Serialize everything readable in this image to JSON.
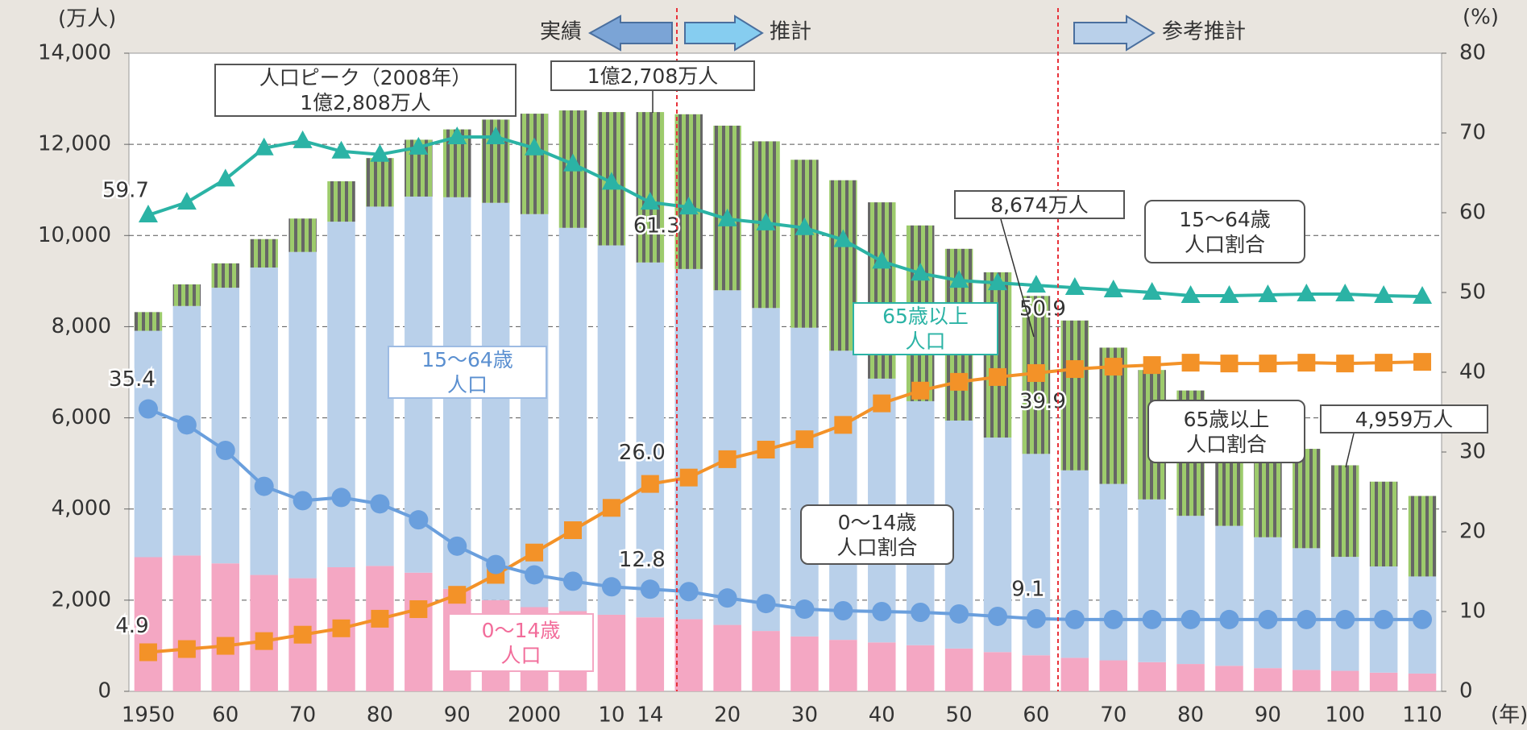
{
  "chart_data": {
    "type": "bar",
    "y_unit": "(万人)",
    "y2_unit": "(%)",
    "x_unit": "(年)",
    "phases": [
      "実績",
      "推計",
      "参考推計"
    ],
    "annotations": [
      "人口ピーク（2008年）\n1億2,808万人",
      "1億2,708万人",
      "8,674万人",
      "4,959万人"
    ],
    "categories": [
      "1950",
      null,
      "60",
      null,
      "70",
      null,
      "80",
      null,
      "90",
      null,
      "2000",
      null,
      "10",
      "14",
      null,
      "20",
      null,
      "30",
      null,
      "40",
      null,
      "50",
      null,
      "60",
      null,
      "70",
      null,
      "80",
      null,
      "90",
      null,
      "100",
      null,
      "110"
    ],
    "ylim": [
      0,
      14000
    ],
    "yticks": [
      0,
      {
        "value": 2000,
        "label": "2,000"
      },
      {
        "value": 4000,
        "label": "4,000"
      },
      {
        "value": 6000,
        "label": "6,000"
      },
      {
        "value": 8000,
        "label": "8,000"
      },
      {
        "value": 10000,
        "label": "10,000"
      },
      {
        "value": 12000,
        "label": "12,000"
      },
      {
        "value": 14000,
        "label": "14,000"
      }
    ],
    "y2lim": [
      0,
      80
    ],
    "y2ticks": [
      0,
      10,
      20,
      30,
      40,
      50,
      60,
      70,
      80
    ],
    "grid": true,
    "series": [
      {
        "name": "0～14歳\n人口",
        "color": "#f4a7c3",
        "values": [
          2943,
          2980,
          2807,
          2553,
          2482,
          2722,
          2751,
          2603,
          2249,
          2001,
          1847,
          1759,
          1680,
          1623,
          1583,
          1457,
          1324,
          1204,
          1129,
          1073,
          1012,
          939,
          861,
          791,
          735,
          680,
          640,
          600,
          560,
          510,
          470,
          450,
          410,
          390
        ]
      },
      {
        "name": "15～64歳\n人口",
        "color": "#b9d0ea",
        "values": [
          4966,
          5473,
          6047,
          6744,
          7157,
          7581,
          7883,
          8251,
          8590,
          8716,
          8622,
          8409,
          8103,
          7785,
          7682,
          7341,
          7085,
          6773,
          6343,
          5787,
          5353,
          5001,
          4706,
          4418,
          4113,
          3870,
          3570,
          3250,
          3070,
          2870,
          2670,
          2500,
          2330,
          2130
        ]
      },
      {
        "name": "65歳以上\n人口",
        "color": "#9dcb6c",
        "stripe_color": "#666666",
        "values": [
          411,
          475,
          535,
          624,
          733,
          887,
          1065,
          1247,
          1489,
          1826,
          2204,
          2576,
          2925,
          3300,
          3395,
          3612,
          3657,
          3685,
          3741,
          3868,
          3856,
          3768,
          3626,
          3465,
          3287,
          2990,
          2840,
          2750,
          2470,
          2320,
          2180,
          2009,
          1860,
          1766
        ]
      },
      {
        "name": "15～64歳\n人口割合",
        "type": "line",
        "marker": "triangle",
        "axis": "y2",
        "color": "#2bb3a5",
        "values": [
          59.7,
          61.3,
          64.2,
          68.1,
          69.0,
          67.7,
          67.3,
          68.2,
          69.5,
          69.5,
          68.1,
          66.1,
          63.8,
          61.3,
          60.7,
          59.2,
          58.7,
          58.1,
          56.6,
          53.9,
          52.4,
          51.5,
          51.2,
          50.9,
          50.6,
          50.3,
          50.0,
          49.6,
          49.6,
          49.7,
          49.8,
          49.8,
          49.6,
          49.5
        ],
        "value_labels": [
          "59.7",
          null,
          null,
          null,
          null,
          null,
          null,
          null,
          null,
          null,
          null,
          null,
          null,
          "61.3",
          null,
          null,
          null,
          null,
          null,
          null,
          null,
          null,
          null,
          "50.9",
          null,
          null,
          null,
          null,
          null,
          null,
          null,
          null,
          null,
          null
        ]
      },
      {
        "name": "65歳以上\n人口割合",
        "type": "line",
        "marker": "square",
        "axis": "y2",
        "color": "#f39228",
        "values": [
          4.9,
          5.3,
          5.7,
          6.3,
          7.1,
          7.9,
          9.1,
          10.3,
          12.1,
          14.6,
          17.4,
          20.2,
          23.0,
          26.0,
          26.8,
          29.1,
          30.3,
          31.6,
          33.4,
          36.1,
          37.7,
          38.8,
          39.4,
          39.9,
          40.4,
          40.7,
          40.9,
          41.2,
          41.1,
          41.1,
          41.2,
          41.1,
          41.2,
          41.3
        ],
        "value_labels": [
          "4.9",
          null,
          null,
          null,
          null,
          null,
          null,
          null,
          null,
          null,
          null,
          null,
          null,
          "26.0",
          null,
          null,
          null,
          null,
          null,
          null,
          null,
          null,
          null,
          "39.9",
          null,
          null,
          null,
          null,
          null,
          null,
          null,
          null,
          null,
          null
        ]
      },
      {
        "name": "0～14歳\n人口割合",
        "type": "line",
        "marker": "circle",
        "axis": "y2",
        "color": "#6a9fdd",
        "values": [
          35.4,
          33.4,
          30.2,
          25.7,
          23.9,
          24.3,
          23.5,
          21.5,
          18.2,
          15.9,
          14.6,
          13.8,
          13.1,
          12.8,
          12.5,
          11.7,
          11.0,
          10.3,
          10.1,
          10.0,
          9.9,
          9.7,
          9.4,
          9.1,
          9.0,
          9.0,
          9.0,
          9.0,
          9.0,
          9.0,
          9.0,
          9.0,
          9.0,
          9.0
        ],
        "value_labels": [
          "35.4",
          null,
          null,
          null,
          null,
          null,
          null,
          null,
          null,
          null,
          null,
          null,
          null,
          "12.8",
          null,
          null,
          null,
          null,
          null,
          null,
          null,
          null,
          null,
          "9.1",
          null,
          null,
          null,
          null,
          null,
          null,
          null,
          null,
          null,
          null
        ]
      }
    ]
  }
}
